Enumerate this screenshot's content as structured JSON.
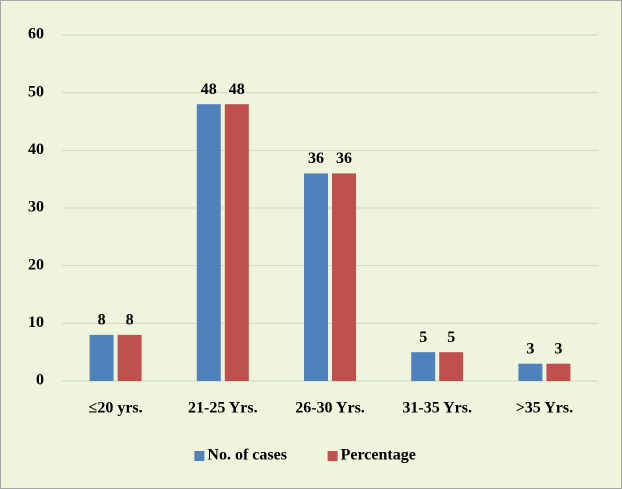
{
  "chart_data": {
    "type": "bar",
    "categories": [
      "≤20 yrs.",
      "21-25 Yrs.",
      "26-30 Yrs.",
      "31-35 Yrs.",
      ">35 Yrs."
    ],
    "series": [
      {
        "name": "No. of cases",
        "color": "#4f81bd",
        "values": [
          8,
          48,
          36,
          5,
          3
        ]
      },
      {
        "name": "Percentage",
        "color": "#c0504d",
        "values": [
          8,
          48,
          36,
          5,
          3
        ]
      }
    ],
    "ylim": [
      0,
      60
    ],
    "yticks": [
      0,
      10,
      20,
      30,
      40,
      50,
      60
    ],
    "grid": true,
    "legend": "bottom"
  }
}
